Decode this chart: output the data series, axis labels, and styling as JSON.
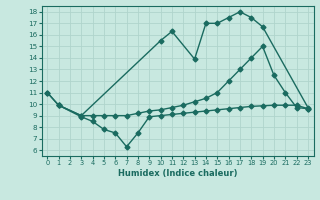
{
  "bg_color": "#c8e8e0",
  "grid_color": "#b0d4cc",
  "line_color": "#1a6b60",
  "xlabel": "Humidex (Indice chaleur)",
  "xlim": [
    -0.5,
    23.5
  ],
  "ylim": [
    5.5,
    18.5
  ],
  "xticks": [
    0,
    1,
    2,
    3,
    4,
    5,
    6,
    7,
    8,
    9,
    10,
    11,
    12,
    13,
    14,
    15,
    16,
    17,
    18,
    19,
    20,
    21,
    22,
    23
  ],
  "yticks": [
    6,
    7,
    8,
    9,
    10,
    11,
    12,
    13,
    14,
    15,
    16,
    17,
    18
  ],
  "line1_x": [
    0,
    1,
    3,
    10,
    11,
    13,
    14,
    15,
    16,
    17,
    18,
    19,
    23
  ],
  "line1_y": [
    11,
    9.9,
    9.0,
    15.5,
    16.3,
    13.9,
    17.0,
    17.0,
    17.5,
    18.0,
    17.5,
    16.7,
    9.7
  ],
  "line2_x": [
    0,
    1,
    3,
    4,
    5,
    6,
    7,
    8,
    9,
    10,
    11,
    12,
    13,
    14,
    15,
    16,
    17,
    18,
    19,
    20,
    21,
    22,
    23
  ],
  "line2_y": [
    11,
    9.9,
    9.0,
    9.0,
    9.0,
    9.0,
    9.0,
    9.2,
    9.4,
    9.5,
    9.7,
    9.9,
    10.2,
    10.5,
    11.0,
    12.0,
    13.0,
    14.0,
    15.0,
    12.5,
    11.0,
    9.7,
    9.6
  ],
  "line3_x": [
    1,
    3,
    4,
    5,
    6,
    7,
    8,
    9,
    10,
    11,
    12,
    13,
    14,
    15,
    16,
    17,
    18,
    19,
    20,
    21,
    22,
    23
  ],
  "line3_y": [
    9.9,
    8.9,
    8.5,
    7.8,
    7.5,
    6.3,
    7.5,
    8.9,
    9.0,
    9.1,
    9.2,
    9.3,
    9.4,
    9.5,
    9.6,
    9.7,
    9.8,
    9.85,
    9.9,
    9.9,
    9.9,
    9.6
  ]
}
